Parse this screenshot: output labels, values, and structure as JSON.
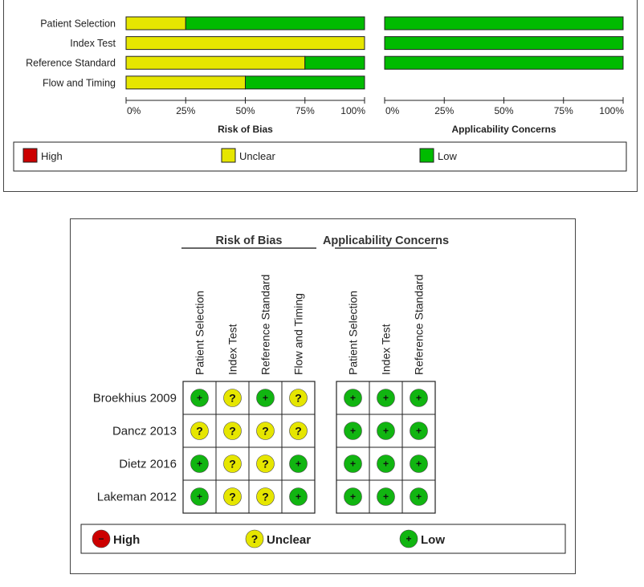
{
  "colors": {
    "high": "#cc0000",
    "unclear": "#e6e600",
    "low": "#00bb00",
    "low_dot": "#11b511",
    "border": "#222222"
  },
  "chart_data": [
    {
      "type": "bar",
      "stacked": true,
      "orientation": "horizontal",
      "categories": [
        "Patient Selection",
        "Index Test",
        "Reference Standard",
        "Flow and Timing"
      ],
      "panels": [
        {
          "xlabel": "Risk of Bias",
          "series": [
            {
              "name": "High",
              "values": [
                0,
                0,
                0,
                0
              ]
            },
            {
              "name": "Unclear",
              "values": [
                25,
                100,
                75,
                50
              ]
            },
            {
              "name": "Low",
              "values": [
                75,
                0,
                25,
                50
              ]
            }
          ]
        },
        {
          "xlabel": "Applicability Concerns",
          "series": [
            {
              "name": "High",
              "values": [
                0,
                0,
                0,
                null
              ]
            },
            {
              "name": "Unclear",
              "values": [
                0,
                0,
                0,
                null
              ]
            },
            {
              "name": "Low",
              "values": [
                100,
                100,
                100,
                null
              ]
            }
          ]
        }
      ],
      "xticks": [
        "0%",
        "25%",
        "50%",
        "75%",
        "100%"
      ],
      "xlim": [
        0,
        100
      ],
      "legend": [
        "High",
        "Unclear",
        "Low"
      ]
    },
    {
      "type": "table",
      "group_headers": [
        "Risk of Bias",
        "Applicability Concerns"
      ],
      "columns": [
        [
          "Patient Selection",
          "Index Test",
          "Reference Standard",
          "Flow and Timing"
        ],
        [
          "Patient Selection",
          "Index Test",
          "Reference Standard"
        ]
      ],
      "rows": [
        {
          "study": "Broekhius 2009",
          "rob": [
            "Low",
            "Unclear",
            "Low",
            "Unclear"
          ],
          "app": [
            "Low",
            "Low",
            "Low"
          ]
        },
        {
          "study": "Dancz 2013",
          "rob": [
            "Unclear",
            "Unclear",
            "Unclear",
            "Unclear"
          ],
          "app": [
            "Low",
            "Low",
            "Low"
          ]
        },
        {
          "study": "Dietz 2016",
          "rob": [
            "Low",
            "Unclear",
            "Unclear",
            "Low"
          ],
          "app": [
            "Low",
            "Low",
            "Low"
          ]
        },
        {
          "study": "Lakeman 2012",
          "rob": [
            "Low",
            "Unclear",
            "Unclear",
            "Low"
          ],
          "app": [
            "Low",
            "Low",
            "Low"
          ]
        }
      ],
      "symbols": {
        "High": "−",
        "Unclear": "?",
        "Low": "+"
      },
      "legend": [
        "High",
        "Unclear",
        "Low"
      ]
    }
  ]
}
